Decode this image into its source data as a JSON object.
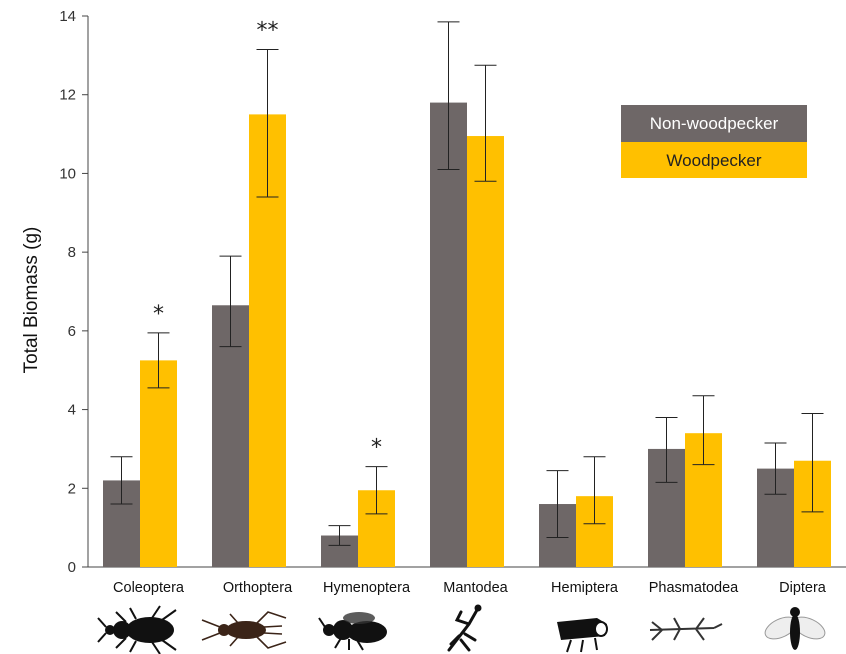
{
  "chart_data": {
    "type": "bar",
    "ylabel": "Total Biomass (g)",
    "xlabel": "",
    "ylim": [
      0,
      14
    ],
    "yticks": [
      "0",
      "2",
      "4",
      "6",
      "8",
      "10",
      "12",
      "14"
    ],
    "categories": [
      "Coleoptera",
      "Orthoptera",
      "Hymenoptera",
      "Mantodea",
      "Hemiptera",
      "Phasmatodea",
      "Diptera"
    ],
    "series": [
      {
        "name": "Non-woodpecker",
        "color": "#6e6767",
        "values": [
          2.2,
          6.65,
          0.8,
          11.8,
          1.6,
          3.0,
          2.5
        ],
        "err_low": [
          1.6,
          5.6,
          0.55,
          10.1,
          0.75,
          2.15,
          1.85
        ],
        "err_high": [
          2.8,
          7.9,
          1.05,
          13.85,
          2.45,
          3.8,
          3.15
        ]
      },
      {
        "name": "Woodpecker",
        "color": "#ffc000",
        "values": [
          5.25,
          11.5,
          1.95,
          10.95,
          1.8,
          3.4,
          2.7
        ],
        "err_low": [
          4.55,
          9.4,
          1.35,
          9.8,
          1.1,
          2.6,
          1.4
        ],
        "err_high": [
          5.95,
          13.15,
          2.55,
          12.75,
          2.8,
          4.35,
          3.9
        ]
      }
    ],
    "significance": [
      "*",
      "**",
      "*",
      "",
      "",
      "",
      ""
    ],
    "legend_position": "top-right",
    "legend_text_color": "#ffffff",
    "legend_text_color_2": "#222222",
    "grid": false,
    "category_icons": [
      "beetle-icon",
      "cricket-icon",
      "bee-icon",
      "mantis-icon",
      "leafhopper-icon",
      "stick-insect-icon",
      "fly-icon"
    ]
  }
}
